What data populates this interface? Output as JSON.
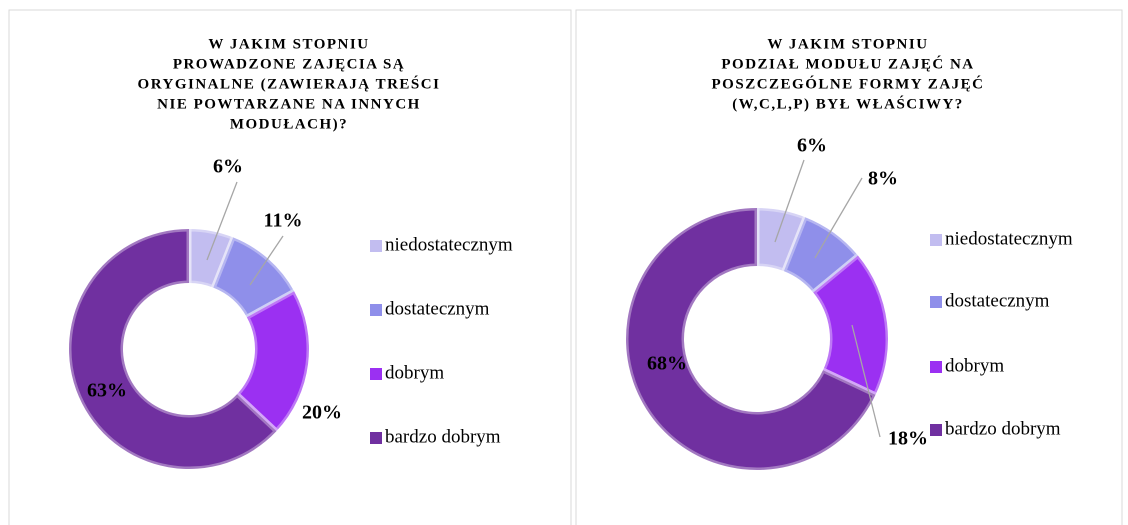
{
  "chart_data": [
    {
      "type": "pie",
      "donut": true,
      "title": [
        "W JAKIM STOPNIU",
        "PROWADZONE ZAJĘCIA SĄ",
        "ORYGINALNE (ZAWIERAJĄ TREŚCI",
        "NIE POWTARZANE NA INNYCH",
        "MODUŁACH)?"
      ],
      "categories": [
        "niedostatecznym",
        "dostatecznym",
        "dobrym",
        "bardzo dobrym"
      ],
      "values": [
        6,
        11,
        20,
        63
      ],
      "value_labels": [
        "6%",
        "11%",
        "20%",
        "63%"
      ],
      "colors": [
        "#c2bdf0",
        "#8f8fea",
        "#9b30f2",
        "#7030a0"
      ],
      "legend": "right"
    },
    {
      "type": "pie",
      "donut": true,
      "title": [
        "W JAKIM STOPNIU",
        "PODZIAŁ MODUŁU ZAJĘĆ NA",
        "POSZCZEGÓLNE FORMY ZAJĘĆ",
        "(W,C,L,P) BYŁ WŁAŚCIWY?"
      ],
      "categories": [
        "niedostatecznym",
        "dostatecznym",
        "dobrym",
        "bardzo dobrym"
      ],
      "values": [
        6,
        8,
        18,
        68
      ],
      "value_labels": [
        "6%",
        "8%",
        "18%",
        "68%"
      ],
      "colors": [
        "#c2bdf0",
        "#8f8fea",
        "#9b30f2",
        "#7030a0"
      ],
      "legend": "right"
    }
  ]
}
